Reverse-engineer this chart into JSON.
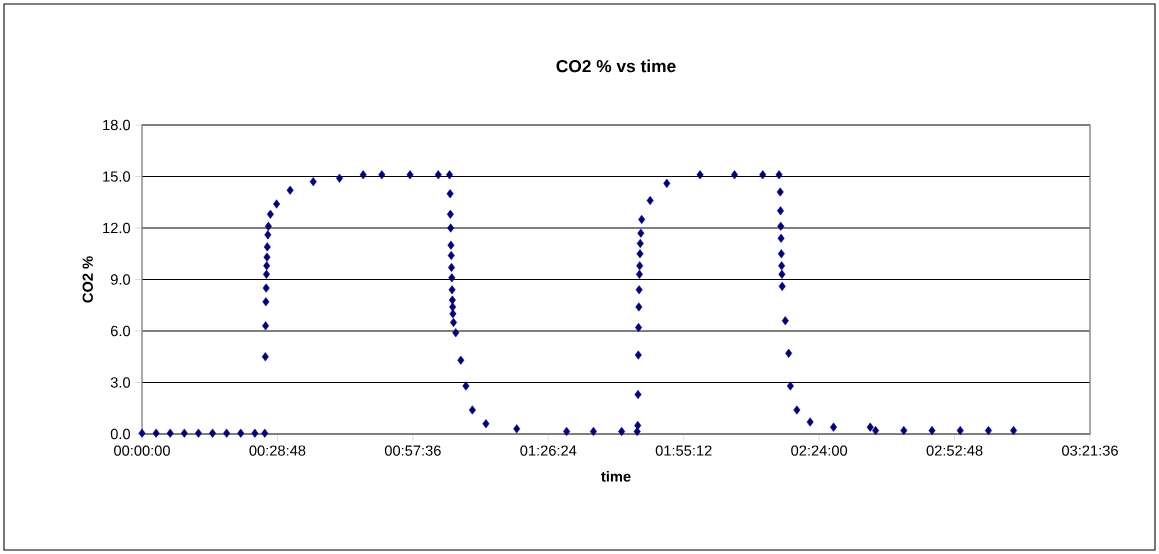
{
  "chart_data": {
    "type": "scatter",
    "title": "CO2 % vs time",
    "xlabel": "time",
    "ylabel": "CO2 %",
    "xlim": [
      0,
      3.36
    ],
    "ylim": [
      0,
      18
    ],
    "xticks": [
      {
        "value": 0,
        "label": "00:00:00"
      },
      {
        "value": 0.48,
        "label": "00:28:48"
      },
      {
        "value": 0.96,
        "label": "00:57:36"
      },
      {
        "value": 1.44,
        "label": "01:26:24"
      },
      {
        "value": 1.92,
        "label": "01:55:12"
      },
      {
        "value": 2.4,
        "label": "02:24:00"
      },
      {
        "value": 2.88,
        "label": "02:52:48"
      },
      {
        "value": 3.36,
        "label": "03:21:36"
      }
    ],
    "yticks": [
      {
        "value": 0,
        "label": "0.0"
      },
      {
        "value": 3,
        "label": "3.0"
      },
      {
        "value": 6,
        "label": "6.0"
      },
      {
        "value": 9,
        "label": "9.0"
      },
      {
        "value": 12,
        "label": "12.0"
      },
      {
        "value": 15,
        "label": "15.0"
      },
      {
        "value": 18,
        "label": "18.0"
      }
    ],
    "grid": "y",
    "marker": "diamond",
    "series": [
      {
        "color": "#000080",
        "x": [
          0,
          0.05,
          0.1,
          0.15,
          0.2,
          0.25,
          0.3,
          0.35,
          0.4,
          0.435,
          0.437,
          0.438,
          0.439,
          0.44,
          0.441,
          0.442,
          0.443,
          0.444,
          0.446,
          0.448,
          0.455,
          0.477,
          0.525,
          0.607,
          0.7,
          0.784,
          0.85,
          0.95,
          1.05,
          1.09,
          1.092,
          1.093,
          1.094,
          1.095,
          1.096,
          1.097,
          1.098,
          1.099,
          1.1,
          1.101,
          1.102,
          1.104,
          1.112,
          1.13,
          1.148,
          1.171,
          1.219,
          1.328,
          1.505,
          1.6,
          1.7,
          1.755,
          1.757,
          1.758,
          1.759,
          1.76,
          1.761,
          1.762,
          1.763,
          1.764,
          1.765,
          1.766,
          1.768,
          1.771,
          1.801,
          1.86,
          1.978,
          2.1,
          2.2,
          2.258,
          2.262,
          2.263,
          2.264,
          2.265,
          2.266,
          2.267,
          2.268,
          2.269,
          2.28,
          2.292,
          2.298,
          2.321,
          2.368,
          2.451,
          2.581,
          2.6,
          2.7,
          2.8,
          2.9,
          3.0,
          3.089
        ],
        "values": [
          0.05,
          0.05,
          0.05,
          0.05,
          0.05,
          0.05,
          0.05,
          0.05,
          0.05,
          0.05,
          4.5,
          6.3,
          7.7,
          8.5,
          9.3,
          9.8,
          10.3,
          10.9,
          11.6,
          12.1,
          12.8,
          13.4,
          14.2,
          14.7,
          14.9,
          15.1,
          15.1,
          15.1,
          15.1,
          15.1,
          14.0,
          12.8,
          12.0,
          11.0,
          10.4,
          9.7,
          9.1,
          8.4,
          7.8,
          7.4,
          7.0,
          6.5,
          5.9,
          4.3,
          2.8,
          1.4,
          0.6,
          0.3,
          0.15,
          0.15,
          0.15,
          0.15,
          0.5,
          2.3,
          4.6,
          6.2,
          7.4,
          8.4,
          9.3,
          9.8,
          10.5,
          11.1,
          11.7,
          12.5,
          13.6,
          14.6,
          15.1,
          15.1,
          15.1,
          15.1,
          14.1,
          13.0,
          12.1,
          11.4,
          10.5,
          9.8,
          9.3,
          8.6,
          6.6,
          4.7,
          2.8,
          1.4,
          0.7,
          0.4,
          0.4,
          0.2,
          0.2,
          0.2,
          0.2,
          0.2,
          0.2
        ]
      }
    ]
  }
}
